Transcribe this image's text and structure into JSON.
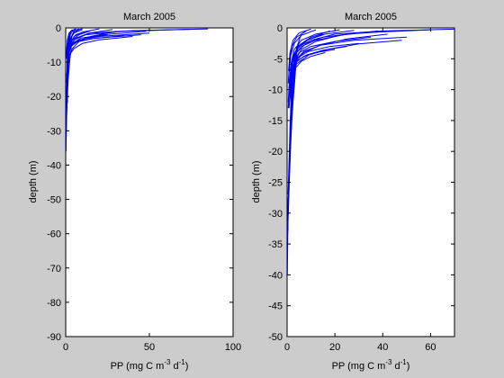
{
  "chart_data": [
    {
      "type": "line",
      "title": "March 2005",
      "xlabel": {
        "prefix": "PP (mg C m",
        "exp1": "-3",
        "mid": " d",
        "exp2": "-1",
        "suffix": ")"
      },
      "ylabel": "depth (m)",
      "xlim": [
        0,
        100
      ],
      "ylim": [
        -90,
        0
      ],
      "xticks": [
        0,
        50,
        100
      ],
      "yticks": [
        0,
        -10,
        -20,
        -30,
        -40,
        -50,
        -60,
        -70,
        -80,
        -90
      ],
      "series": [
        {
          "x": [
            85,
            40,
            15,
            6,
            3,
            2,
            1.5,
            1,
            0.5
          ],
          "y": [
            -0.3,
            -0.8,
            -1.5,
            -3,
            -5,
            -7,
            -10,
            -14,
            -20
          ]
        },
        {
          "x": [
            75,
            35,
            12,
            5,
            2.5,
            1.5,
            1,
            0.8,
            0.5
          ],
          "y": [
            -0.4,
            -1,
            -2,
            -3.5,
            -5.5,
            -8,
            -12,
            -18,
            -25
          ]
        },
        {
          "x": [
            48,
            22,
            9,
            4,
            2,
            1.2,
            0.8
          ],
          "y": [
            -1,
            -2,
            -3,
            -4.5,
            -6.5,
            -10,
            -15
          ]
        },
        {
          "x": [
            50,
            20,
            8,
            3,
            1.5,
            1,
            0.6
          ],
          "y": [
            -1.5,
            -2.5,
            -3.5,
            -5,
            -7,
            -10,
            -14
          ]
        },
        {
          "x": [
            45,
            18,
            7,
            3,
            1.5,
            0.8
          ],
          "y": [
            -2,
            -3,
            -4,
            -5.5,
            -8,
            -12
          ]
        },
        {
          "x": [
            40,
            20,
            10,
            5,
            2,
            1,
            0.5
          ],
          "y": [
            -2.5,
            -3.5,
            -4.5,
            -6,
            -8,
            -11,
            -16
          ]
        },
        {
          "x": [
            30,
            15,
            8,
            4,
            2,
            1
          ],
          "y": [
            -1,
            -2.5,
            -4,
            -6,
            -9,
            -13
          ]
        },
        {
          "x": [
            28,
            14,
            6,
            3,
            1.5,
            0.8
          ],
          "y": [
            -0.5,
            -1.5,
            -3,
            -5,
            -8,
            -12
          ]
        },
        {
          "x": [
            20,
            10,
            5,
            3,
            2,
            1
          ],
          "y": [
            -0.3,
            -1.2,
            -2.5,
            -4.5,
            -7,
            -11
          ]
        },
        {
          "x": [
            15,
            8,
            4,
            2,
            1
          ],
          "y": [
            -0.8,
            -2,
            -3.5,
            -6,
            -10
          ]
        },
        {
          "x": [
            12,
            6,
            3,
            1.5,
            0.8
          ],
          "y": [
            -1,
            -2,
            -4,
            -7,
            -11
          ]
        },
        {
          "x": [
            10,
            5,
            3,
            1.5,
            0.8
          ],
          "y": [
            -0.5,
            -1.5,
            -3,
            -6,
            -10
          ]
        },
        {
          "x": [
            8,
            4,
            2,
            1,
            0.5
          ],
          "y": [
            -0.3,
            -1,
            -2.5,
            -5,
            -9
          ]
        },
        {
          "x": [
            6,
            3,
            1.5,
            0.8,
            0.4
          ],
          "y": [
            -0.2,
            -1,
            -2.5,
            -5,
            -9
          ]
        },
        {
          "x": [
            4,
            2,
            1,
            0.5
          ],
          "y": [
            -0.5,
            -1.5,
            -3.5,
            -7
          ]
        },
        {
          "x": [
            5,
            4,
            3,
            2.5,
            2,
            1.5,
            1,
            0.8,
            0.5
          ],
          "y": [
            -1,
            -2,
            -4,
            -6,
            -8,
            -10,
            -14,
            -18,
            -22
          ]
        },
        {
          "x": [
            4,
            3,
            2.5,
            2,
            1.5,
            1,
            0.5
          ],
          "y": [
            -2,
            -4,
            -6,
            -8,
            -12,
            -16,
            -20
          ]
        },
        {
          "x": [
            3,
            2.5,
            2,
            1.5,
            1.2,
            1,
            0.8,
            0.6,
            0.4,
            0.2
          ],
          "y": [
            -1,
            -3,
            -6,
            -9,
            -12,
            -15,
            -20,
            -25,
            -30,
            -36
          ]
        },
        {
          "x": [
            2.5,
            2.2,
            1.8,
            1.5,
            1.2,
            1,
            0.8,
            0.5,
            0.3
          ],
          "y": [
            -2,
            -5,
            -8,
            -11,
            -14,
            -18,
            -22,
            -27,
            -32
          ]
        },
        {
          "x": [
            2,
            1.8,
            1.5,
            1.2,
            1,
            0.8,
            0.6,
            0.4
          ],
          "y": [
            -3,
            -6,
            -9,
            -12,
            -15,
            -18,
            -22,
            -26
          ]
        },
        {
          "x": [
            1.5,
            1.2,
            1,
            0.8,
            0.6,
            0.4,
            0.2
          ],
          "y": [
            -4,
            -7,
            -10,
            -13,
            -17,
            -21,
            -25
          ]
        },
        {
          "x": [
            6,
            5,
            4,
            3,
            2,
            1.5,
            1
          ],
          "y": [
            -0.3,
            -1,
            -2,
            -3,
            -4.5,
            -6,
            -8
          ]
        },
        {
          "x": [
            10,
            8,
            6,
            4,
            2,
            1
          ],
          "y": [
            -0.2,
            -0.5,
            -1,
            -2,
            -4,
            -7
          ]
        },
        {
          "x": [
            25,
            12,
            6,
            3,
            1.5
          ],
          "y": [
            -2,
            -3,
            -4,
            -5,
            -7
          ]
        },
        {
          "x": [
            35,
            15,
            6,
            2.5,
            1.2
          ],
          "y": [
            -2.2,
            -3.2,
            -4.2,
            -5.2,
            -7.5
          ]
        },
        {
          "x": [
            3.5,
            3,
            2.5,
            2,
            1.5,
            1.2,
            1
          ],
          "y": [
            -5,
            -7,
            -9,
            -12,
            -15,
            -18,
            -22
          ]
        }
      ]
    },
    {
      "type": "line",
      "title": "March 2005",
      "xlabel": {
        "prefix": "PP (mg C m",
        "exp1": "-3",
        "mid": " d",
        "exp2": "-1",
        "suffix": ")"
      },
      "ylabel": "depth (m)",
      "xlim": [
        0,
        70
      ],
      "ylim": [
        -50,
        0
      ],
      "xticks": [
        0,
        20,
        40,
        60
      ],
      "yticks": [
        0,
        -5,
        -10,
        -15,
        -20,
        -25,
        -30,
        -35,
        -40,
        -45,
        -50
      ],
      "series": [
        {
          "x": [
            70,
            40,
            20,
            10,
            5,
            3,
            2,
            1,
            0.5
          ],
          "y": [
            -0.2,
            -0.5,
            -1,
            -2,
            -3,
            -4.5,
            -6,
            -8,
            -12
          ]
        },
        {
          "x": [
            60,
            30,
            15,
            8,
            4,
            2,
            1,
            0.5
          ],
          "y": [
            -0.3,
            -0.8,
            -1.5,
            -2.5,
            -4,
            -6,
            -9,
            -13
          ]
        },
        {
          "x": [
            45,
            25,
            12,
            6,
            3,
            1.5,
            0.8
          ],
          "y": [
            -0.5,
            -1,
            -2,
            -3,
            -4.5,
            -7,
            -10
          ]
        },
        {
          "x": [
            50,
            28,
            14,
            7,
            3.5,
            1.8,
            0.9
          ],
          "y": [
            -1.5,
            -2,
            -2.8,
            -3.8,
            -5.2,
            -7.5,
            -11
          ]
        },
        {
          "x": [
            48,
            30,
            18,
            9,
            4,
            2,
            1
          ],
          "y": [
            -2,
            -2.6,
            -3.4,
            -4.4,
            -5.8,
            -8,
            -12
          ]
        },
        {
          "x": [
            42,
            25,
            14,
            7,
            3.5,
            1.5
          ],
          "y": [
            -1,
            -1.8,
            -2.8,
            -4,
            -5.5,
            -8
          ]
        },
        {
          "x": [
            38,
            22,
            12,
            6,
            3,
            1.5
          ],
          "y": [
            -0.5,
            -1.2,
            -2.2,
            -3.5,
            -5.5,
            -8.5
          ]
        },
        {
          "x": [
            35,
            20,
            10,
            5,
            2.5,
            1.2
          ],
          "y": [
            -1.5,
            -2.2,
            -3,
            -4,
            -6,
            -9
          ]
        },
        {
          "x": [
            30,
            18,
            9,
            4.5,
            2.2,
            1.1
          ],
          "y": [
            -2.5,
            -3,
            -3.8,
            -4.8,
            -6.5,
            -9.5
          ]
        },
        {
          "x": [
            25,
            15,
            8,
            4,
            2,
            1
          ],
          "y": [
            -3,
            -3.6,
            -4.4,
            -5.4,
            -7,
            -10
          ]
        },
        {
          "x": [
            22,
            12,
            6,
            3,
            1.5
          ],
          "y": [
            -0.3,
            -1,
            -2,
            -3.5,
            -6
          ]
        },
        {
          "x": [
            18,
            10,
            5,
            2.5,
            1.2
          ],
          "y": [
            -0.5,
            -1.5,
            -2.8,
            -4.5,
            -7
          ]
        },
        {
          "x": [
            15,
            8,
            4,
            2,
            1
          ],
          "y": [
            -1,
            -2,
            -3.5,
            -5.5,
            -8.5
          ]
        },
        {
          "x": [
            12,
            6,
            3,
            1.5,
            0.8
          ],
          "y": [
            -0.3,
            -1.2,
            -2.5,
            -4.5,
            -7.5
          ]
        },
        {
          "x": [
            10,
            5,
            2.5,
            1.2,
            0.6
          ],
          "y": [
            -0.2,
            -0.8,
            -2,
            -4,
            -7
          ]
        },
        {
          "x": [
            8,
            4,
            2,
            1,
            0.5
          ],
          "y": [
            -0.5,
            -1.5,
            -3,
            -5.5,
            -9
          ]
        },
        {
          "x": [
            6,
            5,
            4,
            3,
            2.5,
            2,
            1.5,
            1,
            0.6,
            0.3
          ],
          "y": [
            -1,
            -2,
            -4,
            -6,
            -9,
            -12,
            -16,
            -21,
            -27,
            -33
          ]
        },
        {
          "x": [
            5,
            4,
            3.5,
            3,
            2.5,
            2,
            1.5,
            1,
            0.5
          ],
          "y": [
            -2,
            -4,
            -6,
            -8,
            -11,
            -14,
            -18,
            -23,
            -28
          ]
        },
        {
          "x": [
            4,
            3.5,
            3,
            2.5,
            2,
            1.5,
            1,
            0.6,
            0.3,
            0.1
          ],
          "y": [
            -3,
            -5,
            -8,
            -11,
            -14,
            -18,
            -22,
            -27,
            -33,
            -40
          ]
        },
        {
          "x": [
            3.5,
            3,
            2.5,
            2,
            1.6,
            1.2,
            0.8,
            0.5,
            0.2
          ],
          "y": [
            -4,
            -7,
            -10,
            -13,
            -16,
            -20,
            -24,
            -28,
            -34
          ]
        },
        {
          "x": [
            3,
            2.6,
            2.2,
            1.8,
            1.4,
            1,
            0.7,
            0.4
          ],
          "y": [
            -5,
            -8,
            -11,
            -14,
            -17,
            -21,
            -25,
            -29
          ]
        },
        {
          "x": [
            2.5,
            2.2,
            1.9,
            1.5,
            1.2,
            0.9,
            0.6,
            0.3
          ],
          "y": [
            -6,
            -9,
            -12,
            -15,
            -18,
            -22,
            -26,
            -31
          ]
        },
        {
          "x": [
            2,
            1.8,
            1.5,
            1.2,
            1,
            0.7,
            0.4
          ],
          "y": [
            -7,
            -10,
            -13,
            -16,
            -19,
            -23,
            -27
          ]
        },
        {
          "x": [
            4.5,
            4,
            3.5,
            3,
            2.5,
            2,
            1.5,
            1,
            0.5
          ],
          "y": [
            -2.5,
            -4.5,
            -7,
            -9.5,
            -12,
            -15,
            -19,
            -24,
            -30
          ]
        },
        {
          "x": [
            20,
            12,
            7,
            4,
            2.5,
            1.5,
            0.8
          ],
          "y": [
            -3.5,
            -4,
            -4.6,
            -5.5,
            -7,
            -9.5,
            -13
          ]
        },
        {
          "x": [
            16,
            10,
            6,
            3.5,
            2,
            1.2
          ],
          "y": [
            -4,
            -4.6,
            -5.4,
            -6.5,
            -8.5,
            -11.5
          ]
        },
        {
          "x": [
            28,
            16,
            9,
            5,
            2.5,
            1.3
          ],
          "y": [
            -0.4,
            -1,
            -1.9,
            -3,
            -4.8,
            -7.5
          ]
        }
      ]
    }
  ]
}
